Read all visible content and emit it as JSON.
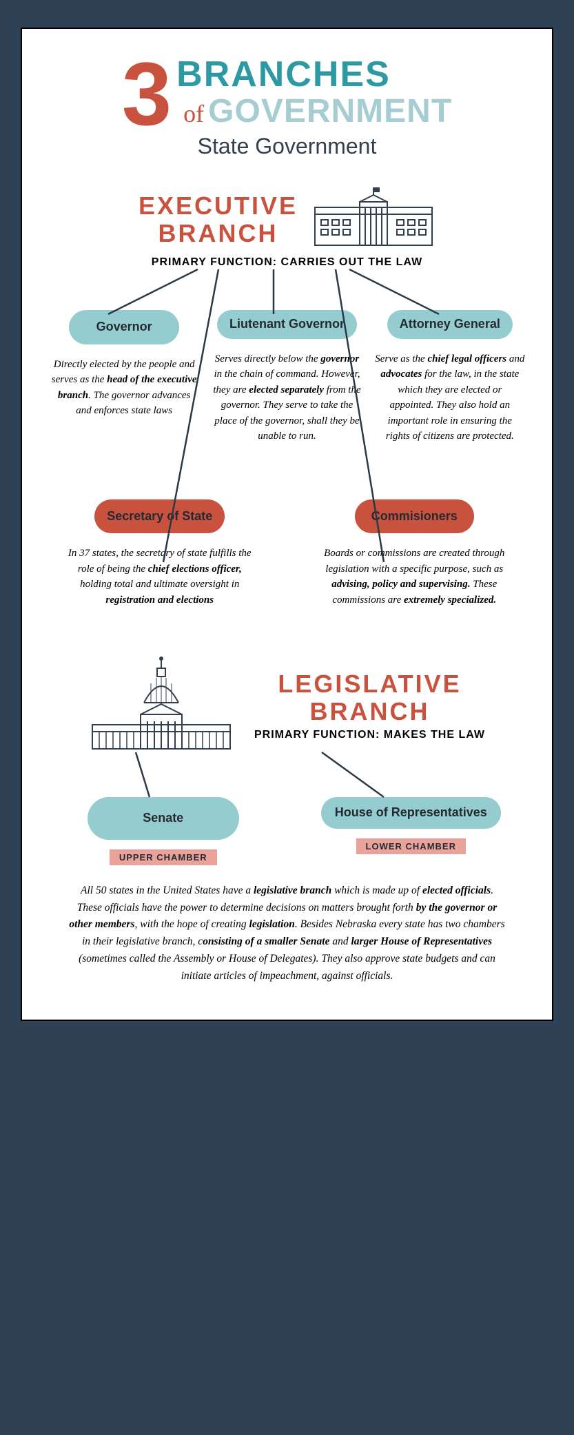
{
  "colors": {
    "frame": "#2e4155",
    "red": "#c8523e",
    "teal_dark": "#2d9aa3",
    "teal_light": "#a5cdd2",
    "pill_teal": "#94ccd0",
    "pink_tag": "#e9a39a",
    "navy": "#333f4d",
    "black": "#000000",
    "white": "#ffffff"
  },
  "title": {
    "number": "3",
    "branches": "BRANCHES",
    "of": "of",
    "government": "GOVERNMENT",
    "subtitle": "State Government"
  },
  "executive": {
    "heading_line1": "EXECUTIVE",
    "heading_line2": "BRANCH",
    "primary_function": "PRIMARY FUNCTION: CARRIES OUT THE LAW",
    "roles_top": [
      {
        "label": "Governor",
        "desc_html": "Directly elected by the people and serves as the <b>head of the executive branch</b>. The governor advances and enforces state laws"
      },
      {
        "label": "Liutenant Governor",
        "desc_html": "Serves directly below the <b>governor</b> in the chain of command. However, they are <b>elected separately</b> from the governor. They serve to take the place of the governor, shall they be unable to run."
      },
      {
        "label": "Attorney General",
        "desc_html": "Serve as the <b>chief legal officers</b> and <b>advocates</b> for the law, in the state which they are elected or appointed. They also hold an important role in ensuring the rights of citizens are protected."
      }
    ],
    "roles_bottom": [
      {
        "label": "Secretary of State",
        "desc_html": "In 37 states, the secretary of state fulfills the role of being the <b>chief elections officer,</b> holding total and ultimate oversight in <b>registration and elections</b>"
      },
      {
        "label": "Commisioners",
        "desc_html": "Boards or commissions are created through legislation with a specific purpose, such as <b>advising, policy and supervising.</b> These commissions are <b>extremely specialized.</b>"
      }
    ]
  },
  "legislative": {
    "heading_line1": "LEGISLATIVE",
    "heading_line2": "BRANCH",
    "primary_function": "PRIMARY FUNCTION: MAKES THE LAW",
    "chambers": [
      {
        "label": "Senate",
        "tag": "UPPER CHAMBER"
      },
      {
        "label": "House of Representatives",
        "tag": "LOWER CHAMBER"
      }
    ],
    "body_html": "All 50 states in the United States have a <b>legislative branch</b> which is made up of <b>elected officials</b>. These officials have the power to determine decisions on matters brought forth <b>by the governor or other members</b>, with the hope of creating <b>legislation</b>. Besides Nebraska every state has two chambers in their legislative branch, c<b>onsisting of a smaller Senate</b> and <b>larger House of Representatives</b> (sometimes called the Assembly or House of Delegates). They also approve state budgets and can initiate articles of impeachment, against officials."
  }
}
